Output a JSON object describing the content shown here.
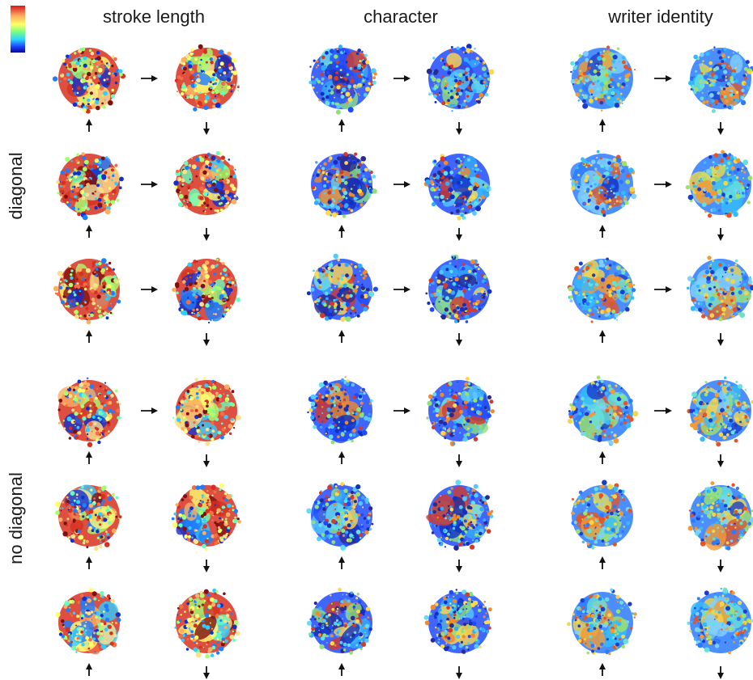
{
  "columns": [
    {
      "title": "stroke length",
      "palette": [
        "#d7301f",
        "#f46d43",
        "#fdae61",
        "#fee08b",
        "#ffff70",
        "#a6ff6e",
        "#66ffbb",
        "#33ccff",
        "#1f7dff",
        "#1030d0",
        "#7f1010"
      ]
    },
    {
      "title": "character",
      "palette": [
        "#1f4bff",
        "#1030c0",
        "#33aaff",
        "#66ddee",
        "#8fe07a",
        "#ffd84d",
        "#f08a2a",
        "#d23a2a",
        "#2a2a90",
        "#55c8ff"
      ]
    },
    {
      "title": "writer identity",
      "palette": [
        "#2c7bff",
        "#33bbff",
        "#66e0d8",
        "#9fe26a",
        "#f2d64a",
        "#f39a33",
        "#e0552b",
        "#1b3fc8",
        "#7fd0ff"
      ]
    }
  ],
  "row_groups": [
    {
      "label": "diagonal"
    },
    {
      "label": "no diagonal"
    }
  ],
  "colorbar": [
    "#d7191c",
    "#fdae61",
    "#ffff66",
    "#7fff7f",
    "#2bd5ff",
    "#1a3cff",
    "#0a0a8c"
  ]
}
